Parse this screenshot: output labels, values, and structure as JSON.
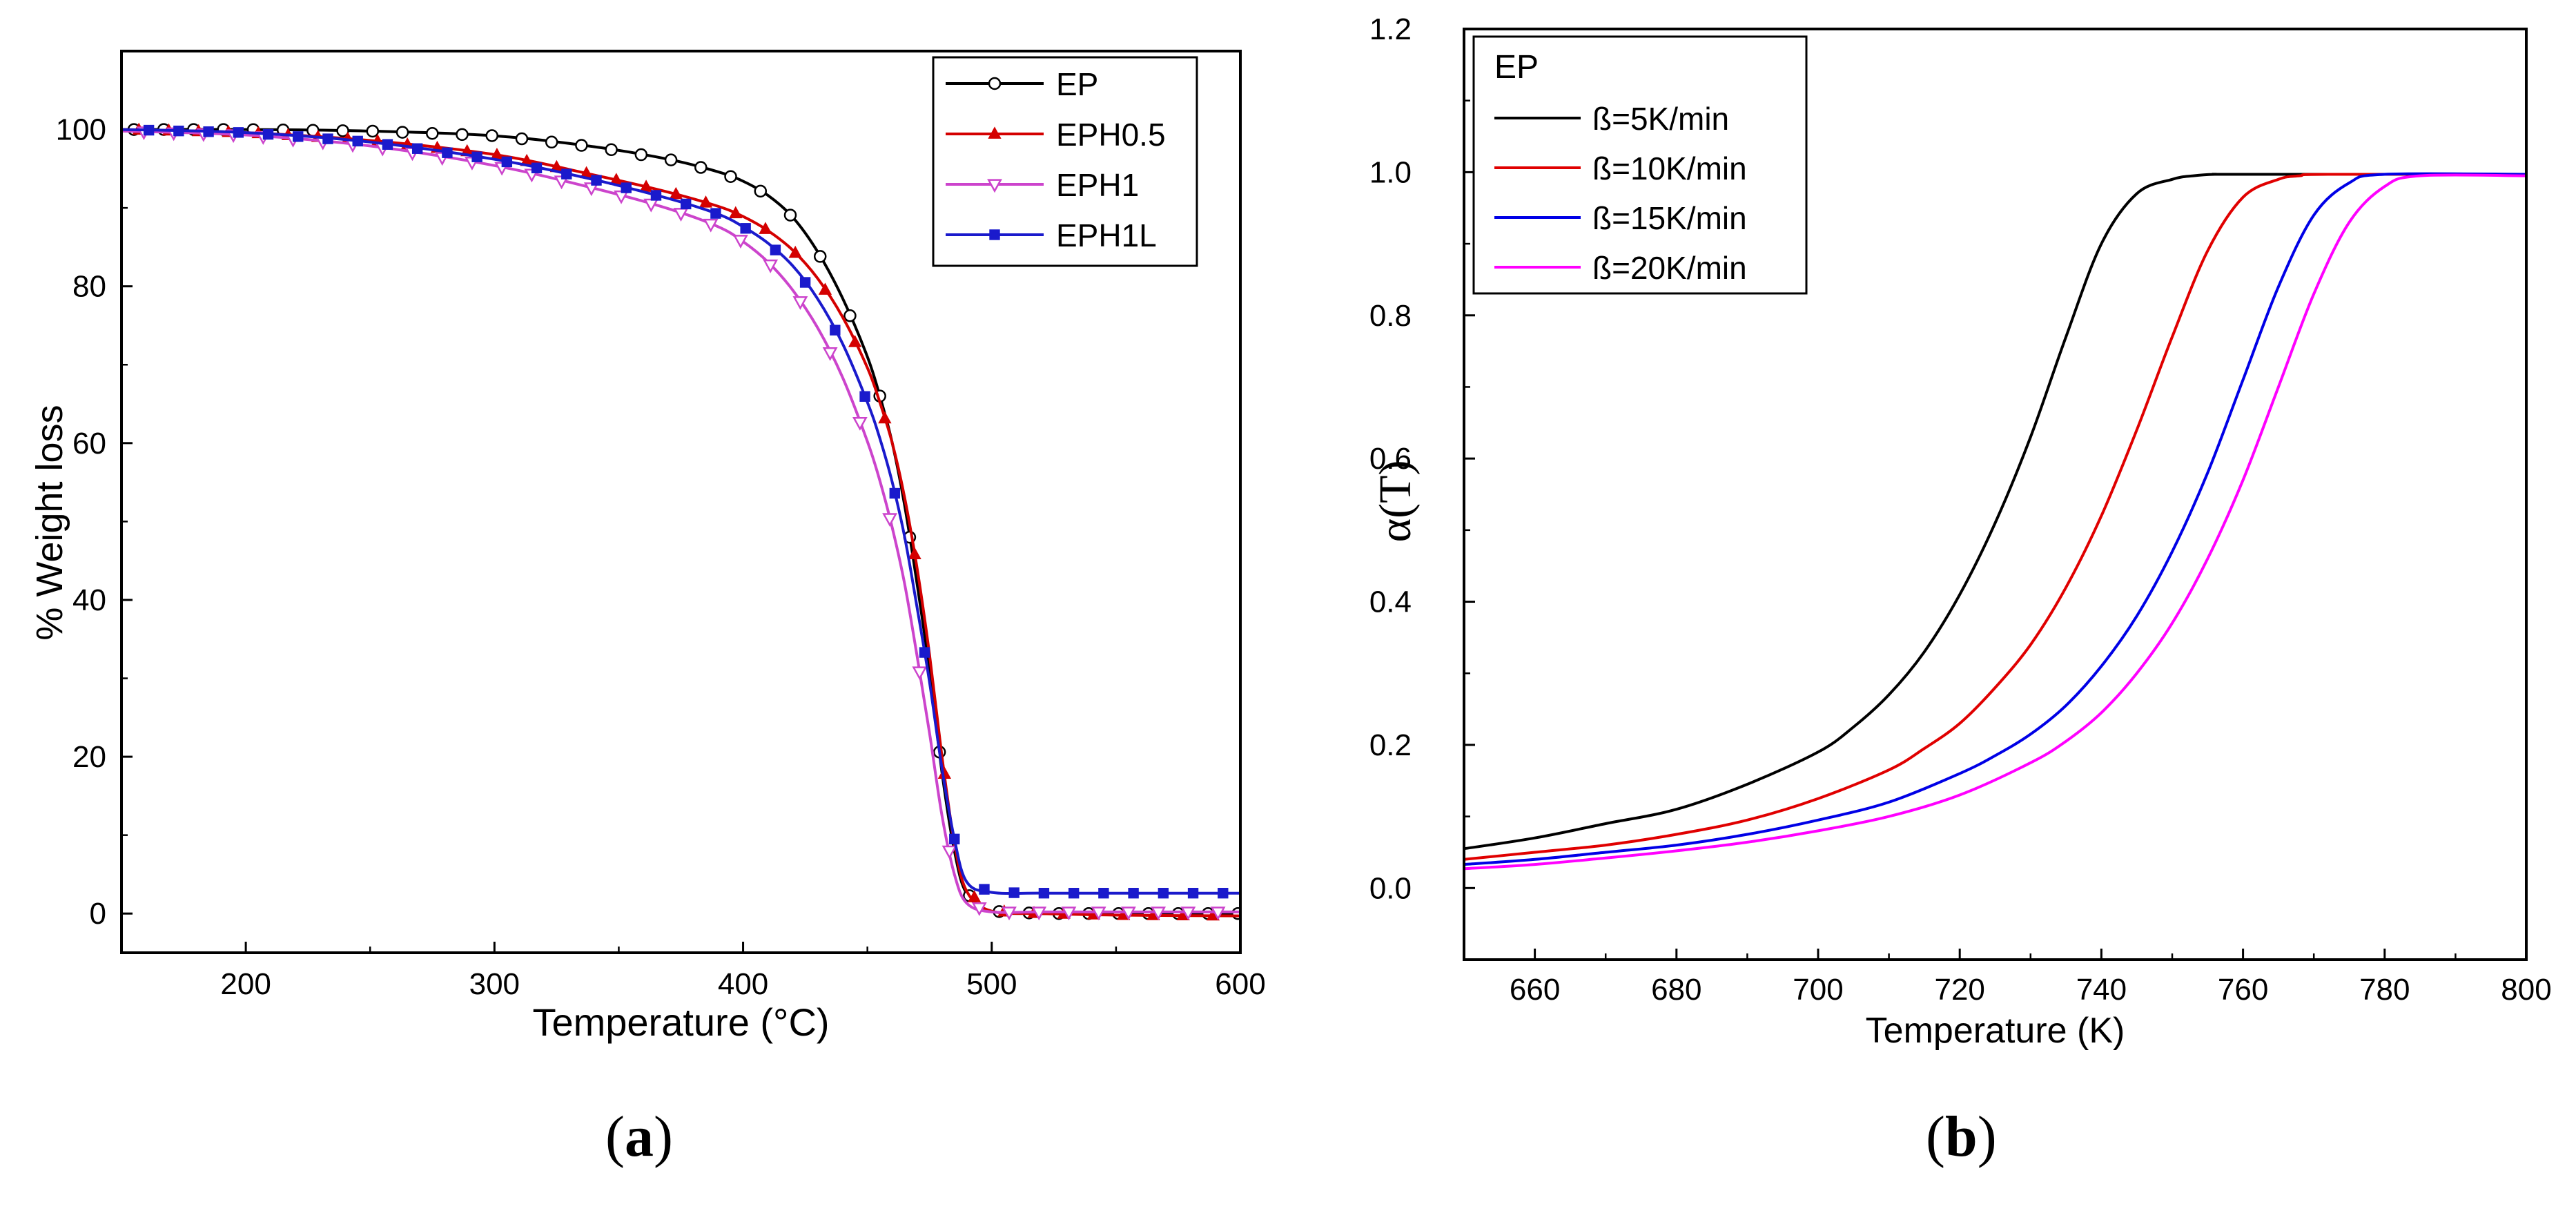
{
  "chart_data": [
    {
      "type": "line",
      "panel_label": "a",
      "xlabel": "Temperature (°C)",
      "ylabel": "% Weight loss",
      "xlim": [
        150,
        600
      ],
      "ylim": [
        -5,
        110
      ],
      "xticks": [
        200,
        300,
        400,
        500,
        600
      ],
      "yticks": [
        0,
        20,
        40,
        60,
        80,
        100
      ],
      "legend_position": "top-right",
      "series": [
        {
          "name": "EP",
          "color": "#000000",
          "marker": "circle-open",
          "x": [
            150,
            200,
            250,
            300,
            340,
            370,
            390,
            400,
            410,
            420,
            430,
            440,
            450,
            455,
            460,
            465,
            470,
            475,
            480,
            485,
            490,
            500,
            520,
            550,
            600
          ],
          "y": [
            100,
            100,
            99.8,
            99.2,
            97.8,
            96.2,
            94.6,
            93.4,
            91.6,
            88.8,
            84.4,
            78.5,
            71,
            66,
            60,
            52,
            42,
            31,
            18,
            8,
            2.5,
            0.3,
            0,
            0,
            0
          ]
        },
        {
          "name": "EPH0.5",
          "color": "#d40000",
          "marker": "triangle-up",
          "x": [
            150,
            200,
            250,
            300,
            340,
            370,
            390,
            400,
            410,
            420,
            430,
            440,
            450,
            455,
            460,
            465,
            470,
            475,
            480,
            485,
            490,
            500,
            520,
            550,
            600
          ],
          "y": [
            100,
            99.6,
            98.6,
            96.8,
            94.2,
            92,
            90.2,
            88.9,
            87.1,
            84.6,
            81,
            76.1,
            69.6,
            65.2,
            60,
            53,
            44,
            33,
            20,
            9,
            2.8,
            0.3,
            0,
            -0.2,
            -0.3
          ]
        },
        {
          "name": "EPH1",
          "color": "#cc44cc",
          "marker": "triangle-down-open",
          "x": [
            150,
            200,
            250,
            300,
            340,
            370,
            390,
            400,
            410,
            420,
            430,
            440,
            450,
            455,
            460,
            465,
            470,
            475,
            480,
            485,
            490,
            500,
            520,
            550,
            600
          ],
          "y": [
            99.8,
            99.3,
            97.9,
            95.4,
            92.5,
            89.9,
            87.6,
            85.7,
            83.1,
            79.5,
            74.7,
            68.4,
            60.2,
            55.2,
            49.2,
            42,
            32.8,
            23,
            12.5,
            5,
            1.3,
            0.2,
            0.2,
            0.2,
            0.2
          ]
        },
        {
          "name": "EPH1L",
          "color": "#1a1acc",
          "marker": "square",
          "x": [
            150,
            200,
            250,
            300,
            340,
            370,
            390,
            400,
            410,
            420,
            430,
            440,
            450,
            455,
            460,
            465,
            470,
            475,
            480,
            485,
            490,
            500,
            520,
            550,
            600
          ],
          "y": [
            100,
            99.6,
            98.4,
            96.2,
            93.6,
            91.2,
            89.2,
            87.6,
            85.5,
            82.6,
            78.4,
            72.7,
            65.2,
            60.6,
            55,
            48,
            39,
            29.5,
            18.5,
            9.5,
            4,
            2.7,
            2.6,
            2.6,
            2.6
          ]
        }
      ]
    },
    {
      "type": "line",
      "panel_label": "b",
      "xlabel": "Temperature (K)",
      "ylabel": "α(T)",
      "xlim": [
        650,
        800
      ],
      "ylim": [
        -0.1,
        1.2
      ],
      "xticks": [
        660,
        680,
        700,
        720,
        740,
        760,
        780,
        800
      ],
      "yticks": [
        0.0,
        0.2,
        0.4,
        0.6,
        0.8,
        1.0,
        1.2
      ],
      "legend_title": "EP",
      "legend_position": "top-left",
      "series": [
        {
          "name": "ß=5K/min",
          "color": "#000000",
          "x": [
            650,
            660,
            670,
            680,
            690,
            700,
            705,
            710,
            715,
            720,
            725,
            730,
            735,
            740,
            745,
            750,
            753,
            756,
            760,
            800
          ],
          "y": [
            0.055,
            0.07,
            0.09,
            0.11,
            0.145,
            0.19,
            0.225,
            0.27,
            0.33,
            0.41,
            0.51,
            0.63,
            0.77,
            0.9,
            0.97,
            0.99,
            0.995,
            0.997,
            0.997,
            0.997
          ]
        },
        {
          "name": "ß=10K/min",
          "color": "#e00000",
          "x": [
            650,
            660,
            670,
            680,
            690,
            700,
            710,
            715,
            720,
            725,
            730,
            735,
            740,
            745,
            750,
            755,
            760,
            765,
            768,
            772,
            800
          ],
          "y": [
            0.04,
            0.05,
            0.06,
            0.075,
            0.095,
            0.125,
            0.165,
            0.195,
            0.23,
            0.28,
            0.34,
            0.42,
            0.52,
            0.64,
            0.77,
            0.89,
            0.965,
            0.99,
            0.995,
            0.997,
            0.997
          ]
        },
        {
          "name": "ß=15K/min",
          "color": "#0000e6",
          "x": [
            650,
            660,
            670,
            680,
            690,
            700,
            710,
            720,
            725,
            730,
            735,
            740,
            745,
            750,
            755,
            760,
            765,
            770,
            775,
            780,
            800
          ],
          "y": [
            0.033,
            0.04,
            0.05,
            0.06,
            0.075,
            0.095,
            0.12,
            0.16,
            0.185,
            0.215,
            0.255,
            0.31,
            0.38,
            0.47,
            0.58,
            0.71,
            0.84,
            0.94,
            0.985,
            0.997,
            0.997
          ]
        },
        {
          "name": "ß=20K/min",
          "color": "#ff00ff",
          "x": [
            650,
            660,
            670,
            680,
            690,
            700,
            710,
            720,
            730,
            735,
            740,
            745,
            750,
            755,
            760,
            765,
            770,
            775,
            780,
            785,
            800
          ],
          "y": [
            0.027,
            0.033,
            0.042,
            0.052,
            0.064,
            0.08,
            0.1,
            0.13,
            0.175,
            0.205,
            0.245,
            0.3,
            0.37,
            0.46,
            0.57,
            0.7,
            0.83,
            0.93,
            0.98,
            0.995,
            0.995
          ]
        }
      ]
    }
  ]
}
